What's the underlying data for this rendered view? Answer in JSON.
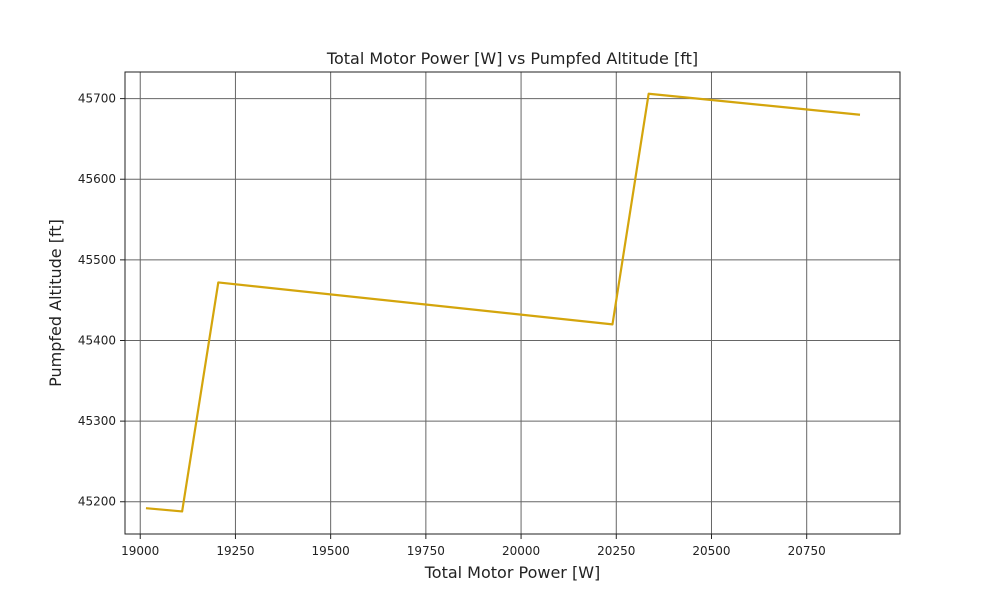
{
  "chart_data": {
    "type": "line",
    "title": "Total Motor Power [W] vs Pumpfed Altitude [ft]",
    "xlabel": "Total Motor Power [W]",
    "ylabel": "Pumpfed Altitude [ft]",
    "xlim": [
      18960,
      20995
    ],
    "ylim": [
      45160,
      45733
    ],
    "xticks": [
      19000,
      19250,
      19500,
      19750,
      20000,
      20250,
      20500,
      20750
    ],
    "yticks": [
      45200,
      45300,
      45400,
      45500,
      45600,
      45700
    ],
    "grid": true,
    "legend": "none",
    "series": [
      {
        "color": "#d4a50c",
        "x": [
          19015,
          19110,
          19205,
          20240,
          20335,
          20890
        ],
        "y": [
          45192,
          45188,
          45472,
          45420,
          45706,
          45680
        ]
      }
    ]
  }
}
